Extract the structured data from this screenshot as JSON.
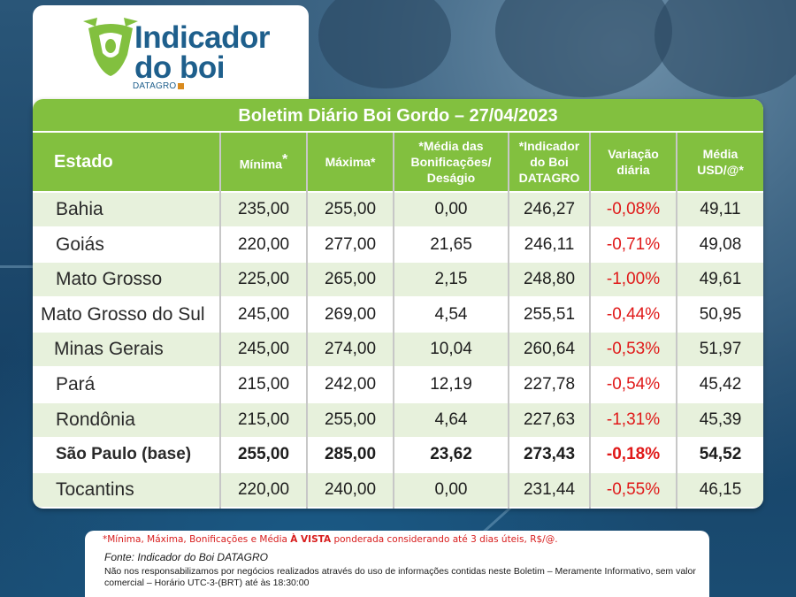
{
  "logo": {
    "title_line1": "Indicador",
    "title_line2": "do boi",
    "subtitle": "DATAGRO",
    "icon": "cow-head-icon",
    "brand_green": "#82c03f",
    "brand_blue": "#1e5f8c"
  },
  "bulletin": {
    "title": "Boletim Diário Boi Gordo – 27/04/2023"
  },
  "table": {
    "headers": {
      "estado": "Estado",
      "minima": "Mínima",
      "minima_mark": "*",
      "maxima": "Máxima*",
      "media_line1": "*Média das",
      "media_line2": "Bonificações/",
      "media_line3": "Deságio",
      "indicador_line1": "*Indicador",
      "indicador_line2": "do Boi",
      "indicador_line3": "DATAGRO",
      "variacao_line1": "Variação",
      "variacao_line2": "diária",
      "usd_line1": "Média",
      "usd_line2": "USD/@*"
    },
    "rows": [
      {
        "estado": "Bahia",
        "minima": "235,00",
        "maxima": "255,00",
        "media": "0,00",
        "indicador": "246,27",
        "variacao": "-0,08%",
        "usd": "49,11"
      },
      {
        "estado": "Goiás",
        "minima": "220,00",
        "maxima": "277,00",
        "media": "21,65",
        "indicador": "246,11",
        "variacao": "-0,71%",
        "usd": "49,08"
      },
      {
        "estado": "Mato Grosso",
        "minima": "225,00",
        "maxima": "265,00",
        "media": "2,15",
        "indicador": "248,80",
        "variacao": "-1,00%",
        "usd": "49,61"
      },
      {
        "estado": "Mato Grosso do Sul",
        "minima": "245,00",
        "maxima": "269,00",
        "media": "4,54",
        "indicador": "255,51",
        "variacao": "-0,44%",
        "usd": "50,95"
      },
      {
        "estado": "Minas Gerais",
        "minima": "245,00",
        "maxima": "274,00",
        "media": "10,04",
        "indicador": "260,64",
        "variacao": "-0,53%",
        "usd": "51,97"
      },
      {
        "estado": "Pará",
        "minima": "215,00",
        "maxima": "242,00",
        "media": "12,19",
        "indicador": "227,78",
        "variacao": "-0,54%",
        "usd": "45,42"
      },
      {
        "estado": "Rondônia",
        "minima": "215,00",
        "maxima": "255,00",
        "media": "4,64",
        "indicador": "227,63",
        "variacao": "-1,31%",
        "usd": "45,39"
      },
      {
        "estado": "São Paulo (base)",
        "minima": "255,00",
        "maxima": "285,00",
        "media": "23,62",
        "indicador": "273,43",
        "variacao": "-0,18%",
        "usd": "54,52"
      },
      {
        "estado": "Tocantins",
        "minima": "220,00",
        "maxima": "240,00",
        "media": "0,00",
        "indicador": "231,44",
        "variacao": "-0,55%",
        "usd": "46,15"
      }
    ],
    "negative_color": "#e01919"
  },
  "footer": {
    "note_before": "*Mínima, Máxima, Bonificações e Média ",
    "note_bold": "À VISTA",
    "note_after": " ponderada considerando até 3 dias úteis, R$/@.",
    "source": "Fonte: Indicador do Boi DATAGRO",
    "disclaimer": "Não nos responsabilizamos por negócios realizados através do uso de informações contidas neste Boletim – Meramente Informativo, sem valor comercial – Horário UTC-3-(BRT) até às 18:30:00"
  }
}
